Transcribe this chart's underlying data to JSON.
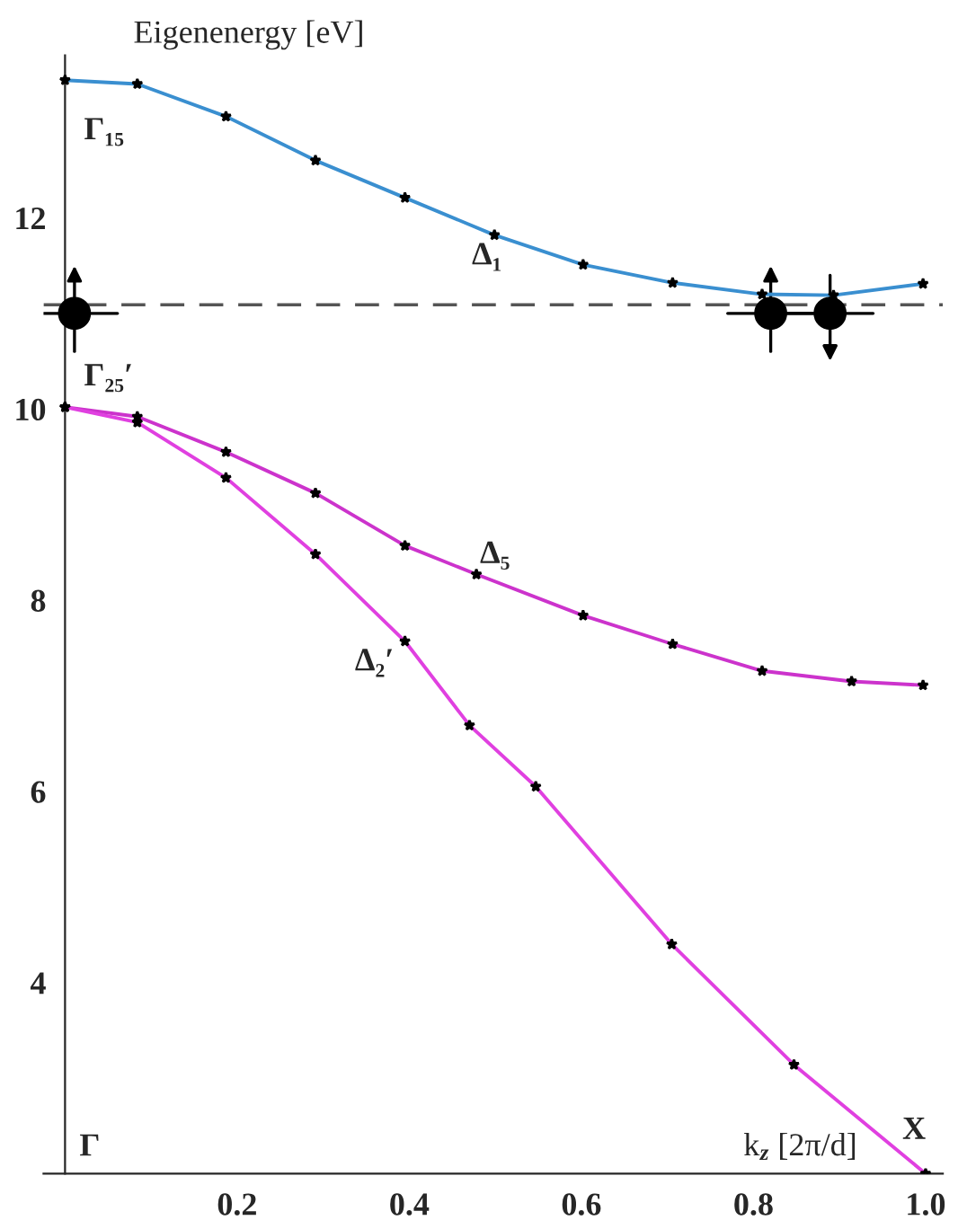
{
  "chart_data": {
    "type": "line",
    "ylabel": "Eigenenergy [eV]",
    "xlabel": "k$_{z}$ [2π/d]",
    "xlim": [
      -0.025,
      1.02
    ],
    "ylim": [
      2,
      13.7
    ],
    "xticks": [
      0.2,
      0.4,
      0.6,
      0.8,
      {
        "value": 1,
        "label": "1.0"
      }
    ],
    "yticks": [
      4,
      6,
      8,
      10,
      12
    ],
    "marker": "star",
    "line_style": "solid",
    "grid": false,
    "legend": false,
    "series": [
      {
        "color": "#3a8fd0",
        "x": [
          0,
          0.084,
          0.187,
          0.291,
          0.395,
          0.499,
          0.602,
          0.706,
          0.81,
          0.893,
          0.997
        ],
        "values": [
          13.44,
          13.4,
          13.06,
          12.6,
          12.21,
          11.82,
          11.51,
          11.32,
          11.2,
          11.19,
          11.31
        ]
      },
      {
        "color": "#cc33cc",
        "x": [
          0,
          0.084,
          0.187,
          0.291,
          0.395,
          0.478,
          0.602,
          0.706,
          0.81,
          0.914,
          0.997
        ],
        "values": [
          10.02,
          9.92,
          9.55,
          9.12,
          8.57,
          8.27,
          7.84,
          7.54,
          7.26,
          7.15,
          7.11
        ]
      },
      {
        "color": "#e040e0",
        "x": [
          0,
          0.084,
          0.187,
          0.291,
          0.395,
          0.47,
          0.547,
          0.705,
          0.847,
          1.0
        ],
        "values": [
          10.02,
          9.86,
          9.28,
          8.48,
          7.57,
          6.69,
          6.05,
          4.4,
          3.14,
          2.0
        ]
      },
      {
        "type": "scatter",
        "color": "#000000",
        "marker": "circle",
        "x": [
          0.011,
          0.82,
          0.889
        ],
        "values": [
          11.0,
          11.0,
          11.0
        ]
      }
    ],
    "ref_lines": [
      {
        "axis": "y",
        "value": 11.09,
        "line_style": "dashed",
        "color": "#555555"
      }
    ],
    "annotations": [
      "Γ₁₅",
      "Γ₂₅′",
      "Δ₁",
      "Δ₅",
      "Δ₂′",
      "Γ",
      "X"
    ]
  }
}
